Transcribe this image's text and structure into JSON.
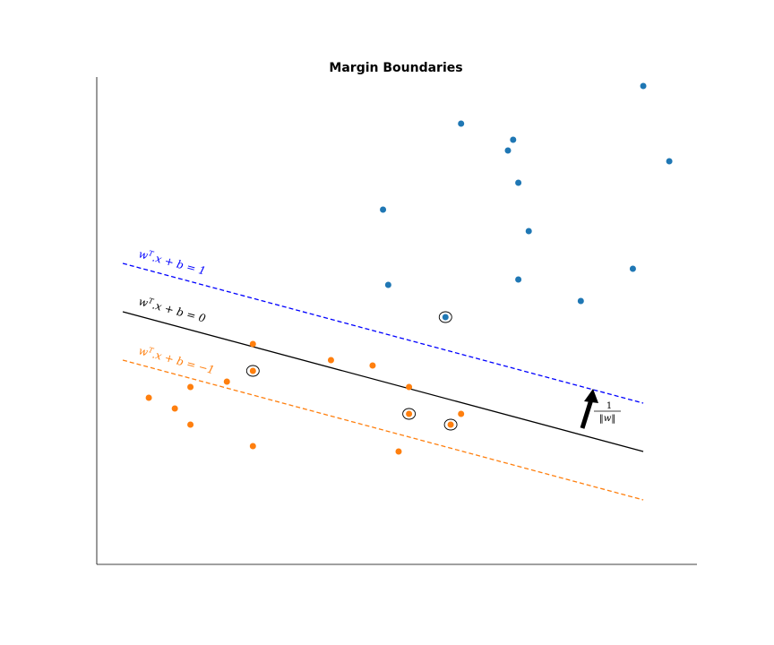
{
  "chart_data": {
    "type": "scatter",
    "title": "Margin Boundaries",
    "xlabel": "",
    "ylabel": "",
    "xlim": [
      0,
      11.5
    ],
    "ylim": [
      -0.6,
      8.5
    ],
    "axis_ticks": false,
    "grid": false,
    "colors": {
      "class_pos": "#1f77b4",
      "class_neg": "#ff7f0e",
      "boundary": "#000000",
      "margin_pos": "#0000ff",
      "margin_neg": "#ff7f0e"
    },
    "series": [
      {
        "class": "positive",
        "color": "#1f77b4",
        "points": [
          {
            "x": 7.0,
            "y": 8.2
          },
          {
            "x": 8.0,
            "y": 7.9
          },
          {
            "x": 7.9,
            "y": 7.7
          },
          {
            "x": 8.1,
            "y": 7.1
          },
          {
            "x": 5.5,
            "y": 6.6
          },
          {
            "x": 8.3,
            "y": 6.2
          },
          {
            "x": 8.1,
            "y": 5.3
          },
          {
            "x": 5.6,
            "y": 5.2
          },
          {
            "x": 9.3,
            "y": 4.9
          },
          {
            "x": 10.3,
            "y": 5.5
          },
          {
            "x": 11.0,
            "y": 7.5
          },
          {
            "x": 10.5,
            "y": 8.9
          }
        ]
      },
      {
        "class": "negative",
        "color": "#ff7f0e",
        "points": [
          {
            "x": 3.0,
            "y": 4.1
          },
          {
            "x": 2.5,
            "y": 3.4
          },
          {
            "x": 1.8,
            "y": 3.3
          },
          {
            "x": 1.0,
            "y": 3.1
          },
          {
            "x": 1.5,
            "y": 2.9
          },
          {
            "x": 1.8,
            "y": 2.6
          },
          {
            "x": 3.0,
            "y": 2.2
          },
          {
            "x": 4.5,
            "y": 3.8
          },
          {
            "x": 5.3,
            "y": 3.7
          },
          {
            "x": 6.0,
            "y": 3.3
          },
          {
            "x": 7.0,
            "y": 2.8
          },
          {
            "x": 5.8,
            "y": 2.1
          }
        ]
      }
    ],
    "support_vectors": [
      {
        "x": 6.7,
        "y": 4.6
      },
      {
        "x": 3.0,
        "y": 3.6
      },
      {
        "x": 6.0,
        "y": 2.8
      },
      {
        "x": 6.8,
        "y": 2.6
      }
    ],
    "lines": [
      {
        "label": "w^T.x + b = 1",
        "style": "dashed",
        "color": "#0000ff",
        "from": {
          "x": 0.5,
          "y": 5.6
        },
        "to": {
          "x": 10.5,
          "y": 3.0
        }
      },
      {
        "label": "w^T.x + b = 0",
        "style": "solid",
        "color": "#000000",
        "from": {
          "x": 0.5,
          "y": 4.7
        },
        "to": {
          "x": 10.5,
          "y": 2.1
        }
      },
      {
        "label": "w^T.x + b = -1",
        "style": "dashed",
        "color": "#ff7f0e",
        "from": {
          "x": 0.5,
          "y": 3.8
        },
        "to": {
          "x": 10.5,
          "y": 1.2
        }
      }
    ],
    "arrow": {
      "label": "1/||w||",
      "from": {
        "x": 9.4,
        "y": 2.4
      },
      "to": {
        "x": 9.6,
        "y": 3.2
      }
    },
    "annotations": [
      {
        "text": "w^T.x + b = 1",
        "color": "#0000ff"
      },
      {
        "text": "w^T.x + b = 0",
        "color": "#000000"
      },
      {
        "text": "w^T.x + b = -1",
        "color": "#ff7f0e"
      }
    ]
  }
}
